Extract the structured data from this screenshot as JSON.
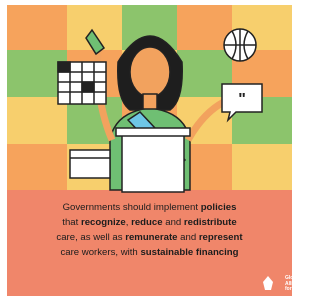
{
  "caption": {
    "lines": [
      [
        {
          "text": "Governments should implement ",
          "bold": false
        },
        {
          "text": "policies",
          "bold": true
        }
      ],
      [
        {
          "text": "that ",
          "bold": false
        },
        {
          "text": "recognize",
          "bold": true
        },
        {
          "text": ", ",
          "bold": false
        },
        {
          "text": "reduce",
          "bold": true
        },
        {
          "text": " and ",
          "bold": false
        },
        {
          "text": "redistribute",
          "bold": true
        }
      ],
      [
        {
          "text": "care, as well as ",
          "bold": false
        },
        {
          "text": "remunerate",
          "bold": true
        },
        {
          "text": " and ",
          "bold": false
        },
        {
          "text": "represent",
          "bold": true
        }
      ],
      [
        {
          "text": "care workers, with ",
          "bold": false
        },
        {
          "text": "sustainable financing",
          "bold": true
        }
      ]
    ]
  },
  "logo": {
    "lines": [
      "Glob",
      "Allia",
      "for C"
    ]
  }
}
